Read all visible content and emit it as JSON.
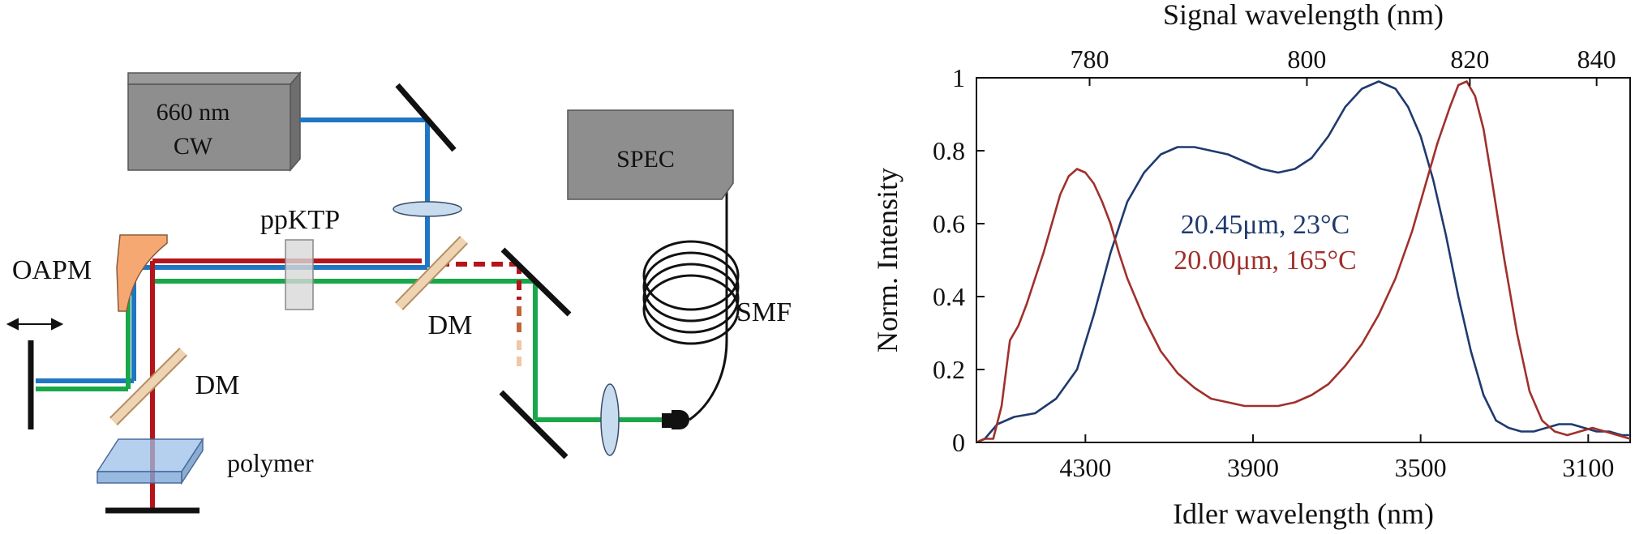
{
  "setup": {
    "laser_label_line1": "660 nm",
    "laser_label_line2": "CW",
    "spectrometer_label": "SPEC",
    "crystal_label": "ppKTP",
    "oapm_label": "OAPM",
    "dm_upper_label": "DM",
    "dm_lower_label": "DM",
    "fiber_label": "SMF",
    "polymer_label": "polymer",
    "beam_colors": {
      "pump": "#1f77c4",
      "signal": "#b5141b",
      "idler": "#18a84a",
      "leak_dark": "#c0653a",
      "leak_light": "#f0c7a8"
    }
  },
  "chart_data": {
    "type": "line",
    "xlabel": "Idler wavelength (nm)",
    "x2label": "Signal wavelength (nm)",
    "ylabel": "Norm. Intensity",
    "x_reversed": true,
    "xlim": [
      4560,
      3000
    ],
    "ylim": [
      0,
      1
    ],
    "xticks": [
      4300,
      3900,
      3500,
      3100
    ],
    "yticks": [
      0,
      0.2,
      0.4,
      0.6,
      0.8,
      1
    ],
    "ytick_labels": [
      "0",
      "0.2",
      "0.4",
      "0.6",
      "0.8",
      "1"
    ],
    "x2ticks": [
      780,
      800,
      820,
      840
    ],
    "pump_nm": 660,
    "grid": false,
    "series": [
      {
        "name": "20.45μm, 23°C",
        "color": "#1f3a6e",
        "x": [
          4560,
          4540,
          4510,
          4470,
          4420,
          4370,
          4320,
          4280,
          4240,
          4200,
          4160,
          4120,
          4080,
          4040,
          4000,
          3960,
          3920,
          3880,
          3840,
          3800,
          3760,
          3720,
          3680,
          3640,
          3600,
          3560,
          3530,
          3500,
          3470,
          3440,
          3410,
          3380,
          3350,
          3320,
          3290,
          3260,
          3230,
          3200,
          3170,
          3140,
          3110,
          3080,
          3050,
          3020,
          3000
        ],
        "y": [
          0.0,
          0.01,
          0.05,
          0.07,
          0.08,
          0.12,
          0.2,
          0.35,
          0.52,
          0.66,
          0.74,
          0.79,
          0.81,
          0.81,
          0.8,
          0.79,
          0.77,
          0.75,
          0.74,
          0.75,
          0.78,
          0.84,
          0.92,
          0.97,
          0.99,
          0.97,
          0.92,
          0.84,
          0.72,
          0.57,
          0.4,
          0.25,
          0.13,
          0.06,
          0.04,
          0.03,
          0.03,
          0.04,
          0.05,
          0.05,
          0.04,
          0.03,
          0.03,
          0.02,
          0.02
        ]
      },
      {
        "name": "20.00μm, 165°C",
        "color": "#a0302b",
        "x": [
          4560,
          4540,
          4520,
          4500,
          4480,
          4460,
          4440,
          4420,
          4400,
          4380,
          4360,
          4340,
          4320,
          4300,
          4280,
          4260,
          4240,
          4220,
          4200,
          4160,
          4120,
          4080,
          4040,
          4000,
          3960,
          3920,
          3880,
          3840,
          3800,
          3760,
          3720,
          3680,
          3640,
          3600,
          3560,
          3520,
          3490,
          3460,
          3430,
          3410,
          3390,
          3370,
          3350,
          3330,
          3300,
          3270,
          3240,
          3210,
          3180,
          3150,
          3120,
          3090,
          3060,
          3030,
          3000
        ],
        "y": [
          0.0,
          0.01,
          0.01,
          0.1,
          0.28,
          0.32,
          0.38,
          0.45,
          0.52,
          0.6,
          0.68,
          0.73,
          0.75,
          0.74,
          0.71,
          0.66,
          0.6,
          0.52,
          0.45,
          0.34,
          0.25,
          0.19,
          0.15,
          0.12,
          0.11,
          0.1,
          0.1,
          0.1,
          0.11,
          0.13,
          0.16,
          0.21,
          0.27,
          0.35,
          0.45,
          0.58,
          0.7,
          0.82,
          0.92,
          0.98,
          0.99,
          0.95,
          0.86,
          0.72,
          0.5,
          0.3,
          0.14,
          0.06,
          0.03,
          0.02,
          0.03,
          0.04,
          0.03,
          0.02,
          0.01
        ]
      }
    ]
  }
}
